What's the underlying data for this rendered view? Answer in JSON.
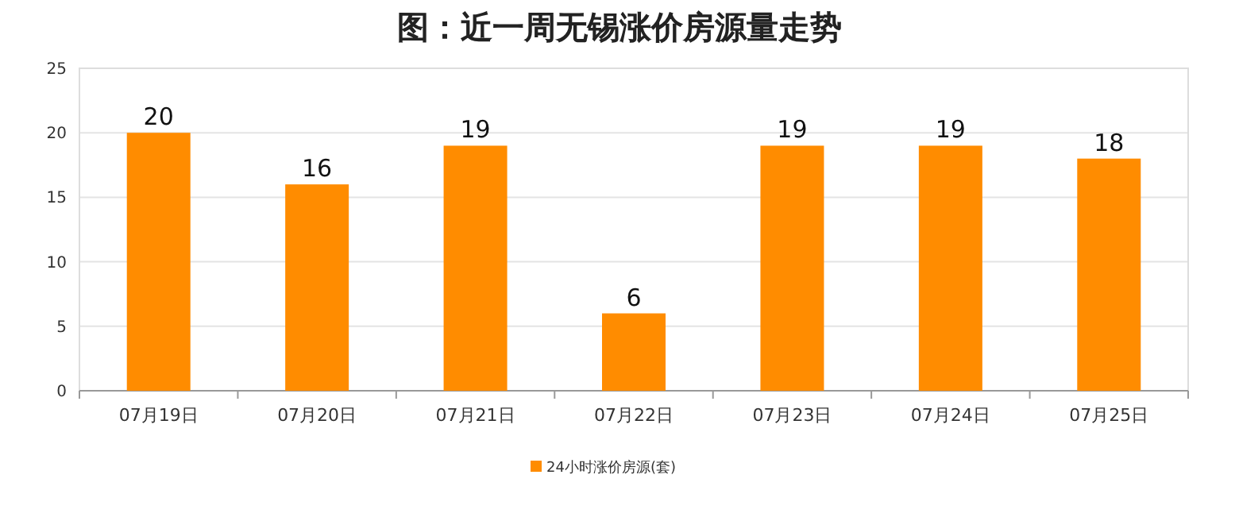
{
  "chart_data": {
    "type": "bar",
    "title": "图：近一周无锡涨价房源量走势",
    "categories": [
      "07月19日",
      "07月20日",
      "07月21日",
      "07月22日",
      "07月23日",
      "07月24日",
      "07月25日"
    ],
    "series": [
      {
        "name": "24小时涨价房源(套)",
        "color": "#ff8c00",
        "values": [
          20,
          16,
          19,
          6,
          19,
          19,
          18
        ]
      }
    ],
    "ylim": [
      0,
      25
    ],
    "yticks": [
      0,
      5,
      10,
      15,
      20,
      25
    ],
    "grid": "y",
    "legend": "bottom",
    "data_labels": true
  }
}
